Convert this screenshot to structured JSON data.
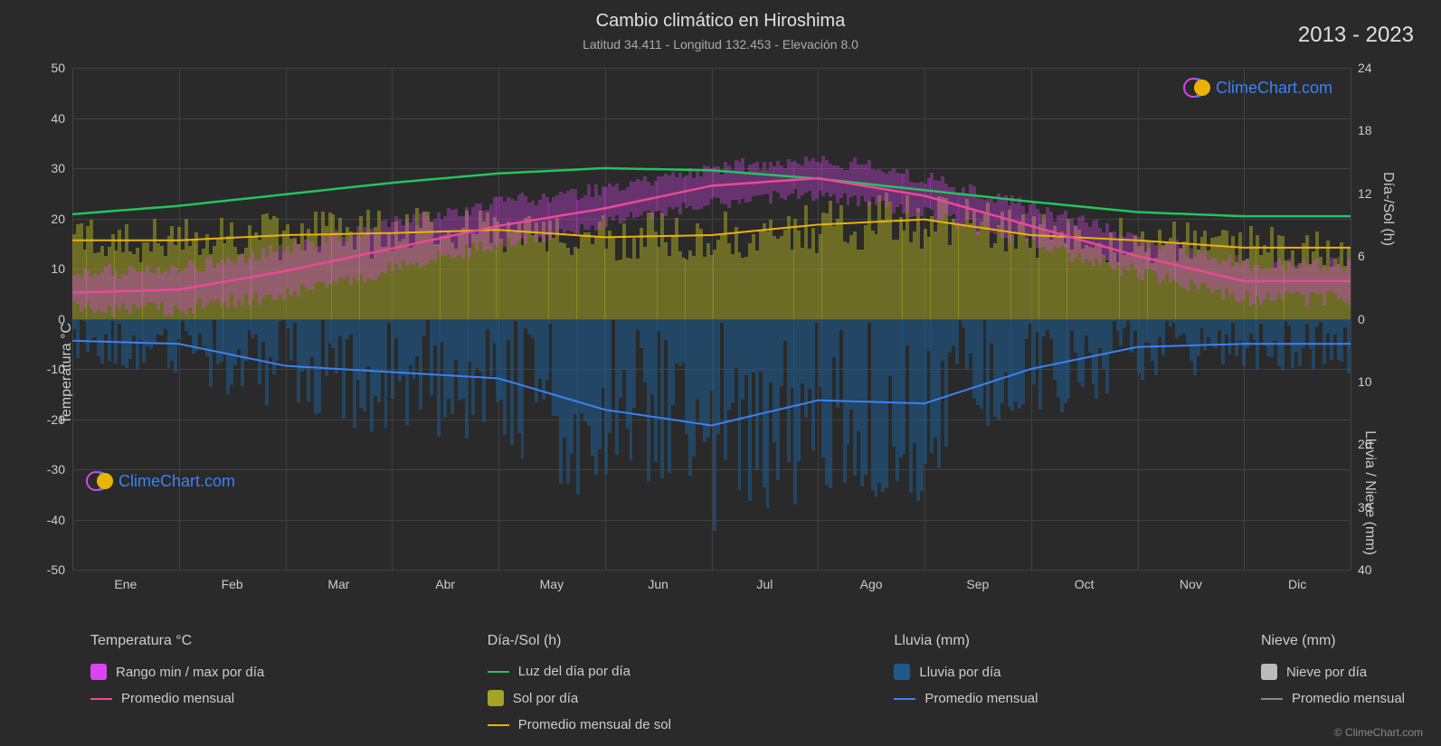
{
  "title": "Cambio climático en Hiroshima",
  "subtitle": "Latitud 34.411 - Longitud 132.453 - Elevación 8.0",
  "year_range": "2013 - 2023",
  "copyright": "© ClimeChart.com",
  "logo_text": "ClimeChart.com",
  "axes": {
    "left_label": "Temperatura °C",
    "right_top_label": "Día-/Sol (h)",
    "right_bottom_label": "Lluvia / Nieve (mm)",
    "left_ticks": [
      50,
      40,
      30,
      20,
      10,
      0,
      -10,
      -20,
      -30,
      -40,
      -50
    ],
    "right_top_ticks": [
      24,
      18,
      12,
      6,
      0
    ],
    "right_bottom_ticks": [
      0,
      10,
      20,
      30,
      40
    ],
    "months": [
      "Ene",
      "Feb",
      "Mar",
      "Abr",
      "May",
      "Jun",
      "Jul",
      "Ago",
      "Sep",
      "Oct",
      "Nov",
      "Dic"
    ],
    "temp_range": [
      -50,
      50
    ],
    "hours_range": [
      0,
      24
    ],
    "rain_range": [
      0,
      40
    ]
  },
  "colors": {
    "background": "#2a2a2a",
    "grid": "#404040",
    "text": "#cccccc",
    "temp_range_fill": "#d946ef",
    "temp_avg_line": "#ec4899",
    "daylight_line": "#22c55e",
    "sun_bar": "#a3a324",
    "sun_avg_line": "#eab308",
    "rain_bar": "#1e5a8a",
    "rain_avg_line": "#3b82f6",
    "snow_bar": "#bbbbbb",
    "snow_avg_line": "#888888"
  },
  "legend": {
    "col1_header": "Temperatura °C",
    "col1_item1": "Rango min / max por día",
    "col1_item2": "Promedio mensual",
    "col2_header": "Día-/Sol (h)",
    "col2_item1": "Luz del día por día",
    "col2_item2": "Sol por día",
    "col2_item3": "Promedio mensual de sol",
    "col3_header": "Lluvia (mm)",
    "col3_item1": "Lluvia por día",
    "col3_item2": "Promedio mensual",
    "col4_header": "Nieve (mm)",
    "col4_item1": "Nieve por día",
    "col4_item2": "Promedio mensual"
  },
  "series": {
    "daylight_hours": [
      10.0,
      10.8,
      11.9,
      13.0,
      13.9,
      14.4,
      14.2,
      13.4,
      12.3,
      11.2,
      10.2,
      9.8
    ],
    "sun_avg_hours": [
      7.5,
      7.5,
      8.0,
      8.2,
      8.5,
      7.8,
      8.0,
      9.0,
      9.5,
      8.0,
      7.5,
      6.8
    ],
    "temp_avg_c": [
      5.2,
      5.8,
      9.5,
      14.0,
      18.5,
      22.0,
      26.5,
      28.0,
      24.5,
      18.5,
      12.5,
      7.5
    ],
    "rain_avg_mm": [
      3.5,
      4.0,
      7.5,
      8.5,
      9.5,
      14.5,
      17.0,
      13.0,
      13.5,
      8.0,
      4.5,
      4.0
    ],
    "temp_min_c": [
      2,
      2,
      5,
      10,
      15,
      19,
      23,
      25,
      21,
      15,
      9,
      4
    ],
    "temp_max_c": [
      9,
      10,
      14,
      19,
      23,
      26,
      30,
      32,
      28,
      22,
      16,
      11
    ]
  }
}
